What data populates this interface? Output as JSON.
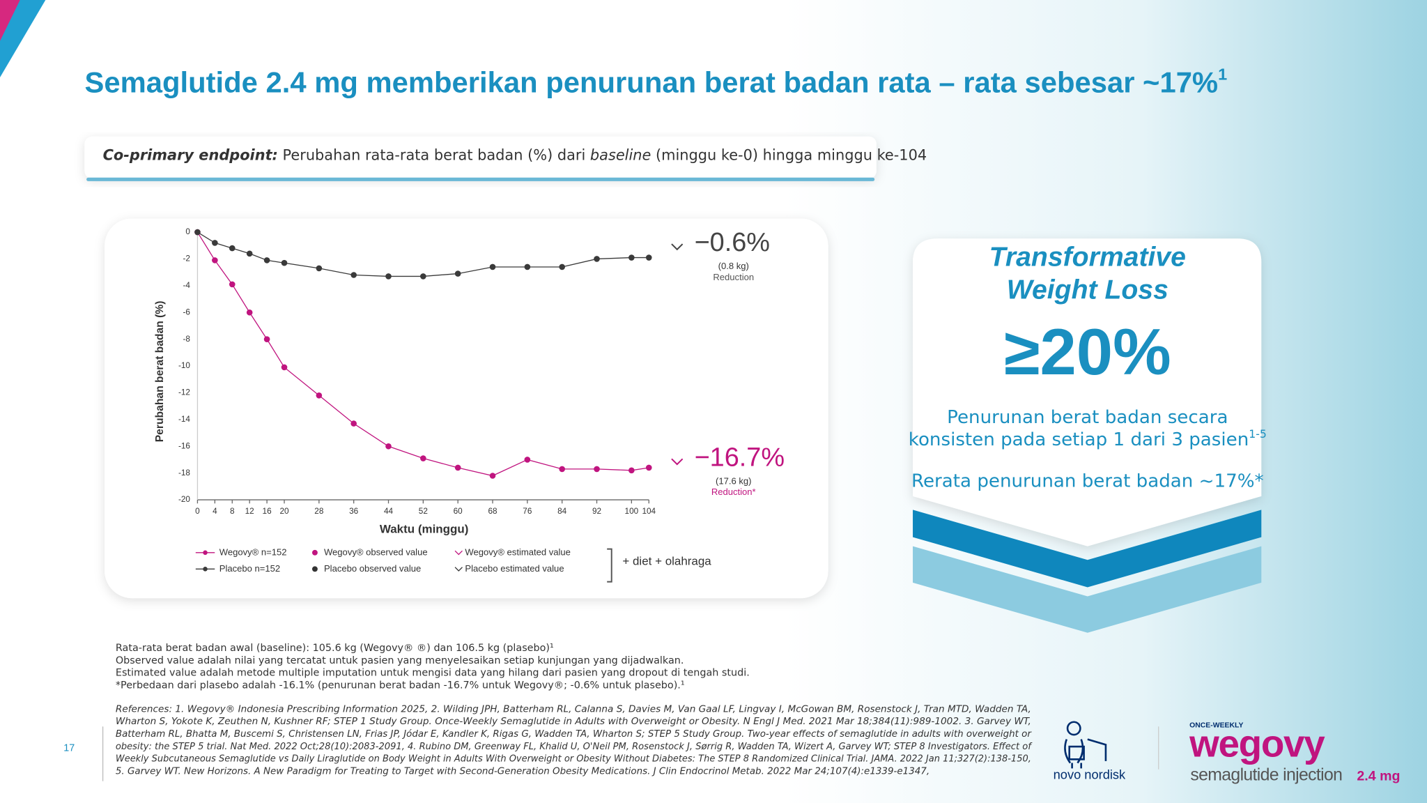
{
  "page_number": "17",
  "header": {
    "title": "Semaglutide 2.4 mg memberikan penurunan berat badan rata – rata sebesar ~17%",
    "title_ref": "1"
  },
  "endpoint": {
    "label": "Co-primary endpoint:",
    "text": [
      "Perubahan rata-rata berat badan (%) dari ",
      "baseline",
      " (minggu ke-0) hingga minggu ke-104"
    ]
  },
  "chart_data": {
    "type": "line",
    "x_label": "Waktu (minggu)",
    "y_label": "Perubahan berat badan (%)",
    "x": [
      0,
      4,
      8,
      12,
      16,
      20,
      28,
      36,
      44,
      52,
      60,
      68,
      76,
      84,
      92,
      100,
      104
    ],
    "series": [
      {
        "name": "Wegovy® n=152",
        "color": "#c0147f",
        "values": [
          0,
          -2.1,
          -3.9,
          -6.0,
          -8.0,
          -10.1,
          -12.2,
          -14.3,
          -16.0,
          -16.9,
          -17.6,
          -18.2,
          -17.0,
          -17.7,
          -17.7,
          -17.8,
          -17.6
        ]
      },
      {
        "name": "Placebo n=152",
        "color": "#3a3a3a",
        "values": [
          0,
          -0.8,
          -1.2,
          -1.6,
          -2.1,
          -2.3,
          -2.7,
          -3.2,
          -3.3,
          -3.3,
          -3.1,
          -2.6,
          -2.6,
          -2.6,
          -2.0,
          -1.9,
          -1.9
        ]
      }
    ],
    "xlim": [
      0,
      104
    ],
    "xticks": [
      0,
      4,
      8,
      12,
      16,
      20,
      28,
      36,
      44,
      52,
      60,
      68,
      76,
      84,
      92,
      100,
      104
    ],
    "ylim": [
      -20,
      0
    ],
    "yticks": [
      0,
      -2,
      -4,
      -6,
      -8,
      -10,
      -12,
      -14,
      -16,
      -18,
      -20
    ],
    "grid": false,
    "annotations": [
      {
        "value": "−0.6%",
        "kg": "(0.8 kg)",
        "note": "Reduction"
      },
      {
        "value": "−16.7%",
        "kg": "(17.6 kg)",
        "note": "Reduction*"
      }
    ],
    "legend_extra": [
      "Wegovy® observed value",
      "Wegovy® estimated value",
      "Placebo observed value",
      "Placebo estimated value",
      "+ diet + olahraga"
    ]
  },
  "panel": {
    "title": [
      "Transformative",
      "Weight Loss"
    ],
    "big": "≥20%",
    "text": [
      "Penurunan berat badan secara",
      "konsisten pada setiap 1 dari 3 pasien"
    ],
    "text_ref": "1-5",
    "mean": "Rerata penurunan berat badan ~17%*"
  },
  "footnotes": [
    "Rata-rata berat badan awal (baseline): 105.6 kg (Wegovy® ®) dan 106.5 kg (plasebo)¹",
    "Observed value adalah nilai yang tercatat untuk pasien yang menyelesaikan setiap kunjungan yang dijadwalkan.",
    "Estimated value adalah metode multiple imputation untuk mengisi data yang hilang dari pasien yang dropout di tengah studi.",
    "*Perbedaan dari plasebo adalah -16.1% (penurunan berat badan -16.7% untuk Wegovy®; -0.6% untuk plasebo).¹"
  ],
  "references": [
    "References: 1. Wegovy® Indonesia Prescribing Information 2025, 2. Wilding JPH, Batterham RL, Calanna S, Davies M, Van Gaal LF, Lingvay I, McGowan BM, Rosenstock J, Tran MTD, Wadden TA,",
    "Wharton S, Yokote K, Zeuthen N, Kushner RF; STEP 1 Study Group. Once-Weekly Semaglutide in Adults with Overweight or Obesity. N Engl J Med. 2021 Mar 18;384(11):989-1002. 3. Garvey WT,",
    "Batterham RL, Bhatta M, Buscemi S, Christensen LN, Frias JP, Jódar E, Kandler K, Rigas G, Wadden TA, Wharton S; STEP 5 Study Group. Two-year effects of semaglutide in adults with overweight or",
    "obesity: the STEP 5 trial. Nat Med. 2022 Oct;28(10):2083-2091, 4. Rubino DM, Greenway FL, Khalid U, O'Neil PM, Rosenstock J, Sørrig R, Wadden TA, Wizert A, Garvey WT; STEP 8 Investigators. Effect of",
    "Weekly Subcutaneous Semaglutide vs Daily Liraglutide on Body Weight in Adults With Overweight or Obesity Without Diabetes: The STEP 8 Randomized Clinical Trial. JAMA. 2022 Jan 11;327(2):138-150,",
    "5. Garvey WT. New Horizons. A New Paradigm for Treating to Target with Second-Generation Obesity Medications. J Clin Endocrinol Metab. 2022 Mar 24;107(4):e1339-e1347,"
  ],
  "logos": {
    "novo": "novo nordisk",
    "once_weekly": "ONCE-WEEKLY",
    "wegovy": "wegovy",
    "sub": "semaglutide injection",
    "dose": "2.4 mg"
  }
}
